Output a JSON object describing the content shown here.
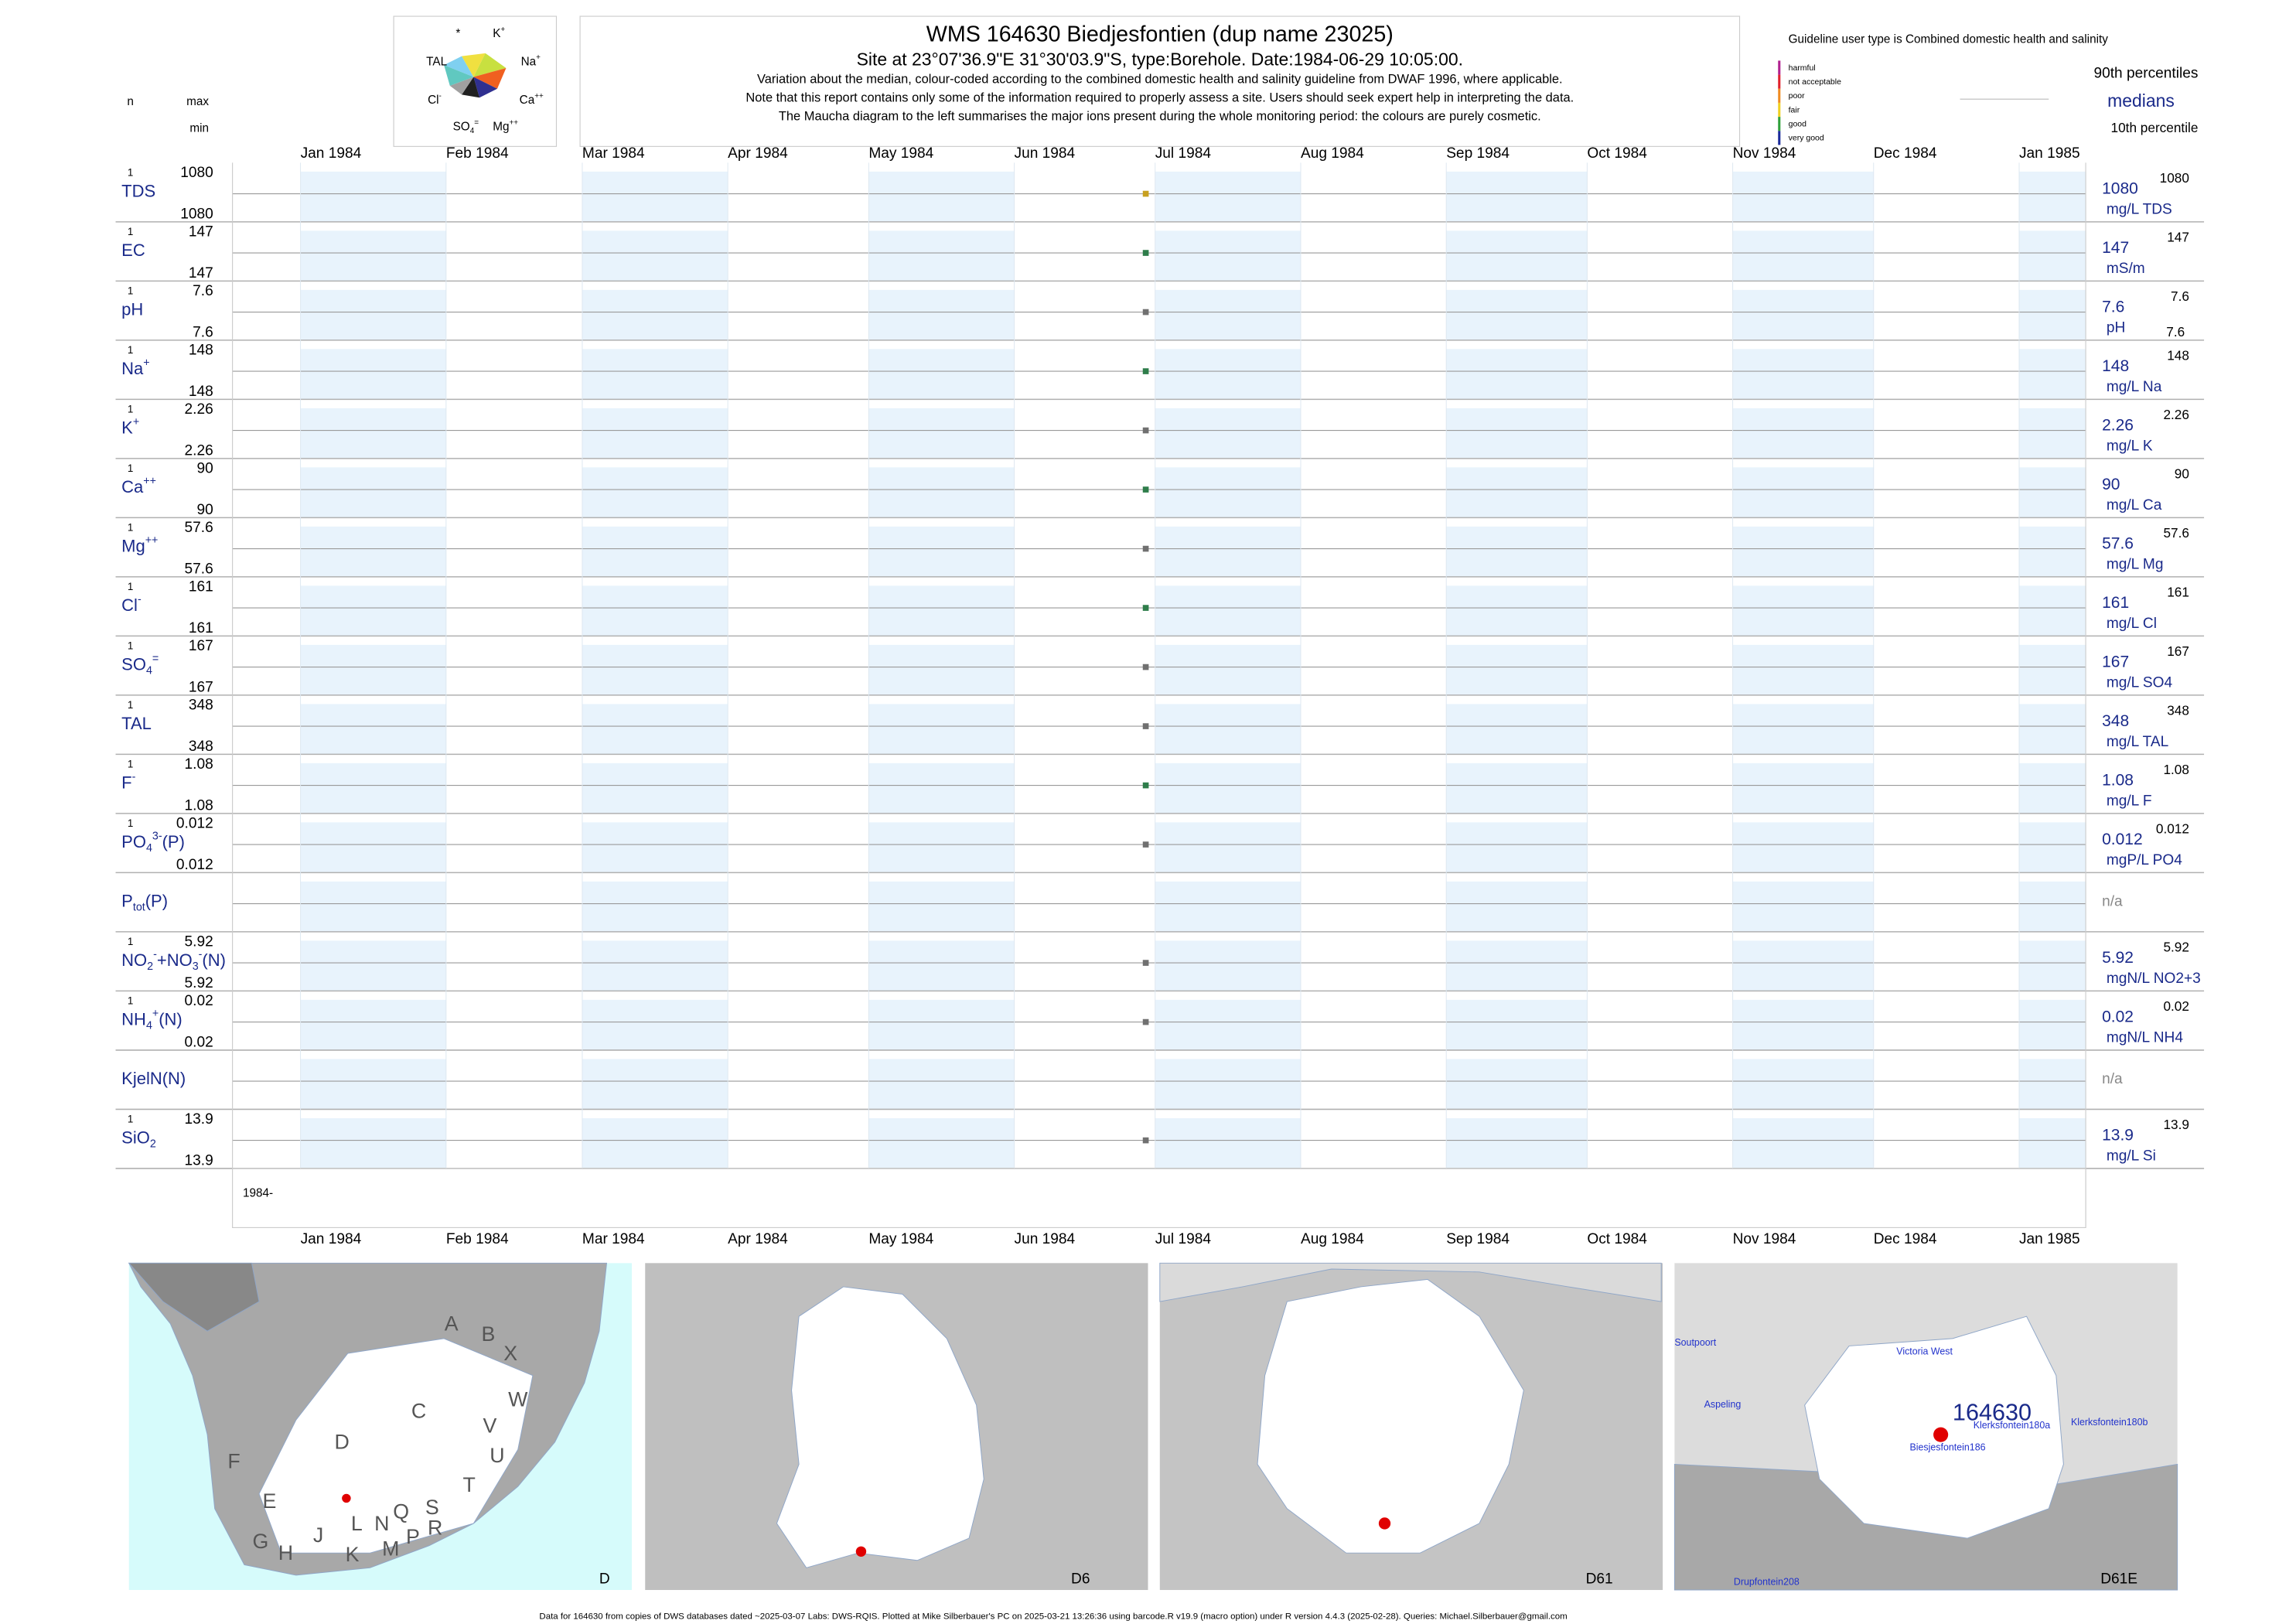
{
  "header": {
    "title": "WMS 164630  Biedjesfontien (dup name 23025)",
    "subtitle": "Site at 23°07'36.9\"E 31°30'03.9\"S, type:Borehole. Date:1984-06-29 10:05:00.",
    "notes": [
      "Variation about the median,  colour-coded according to the combined domestic health and salinity guideline from DWAF 1996, where applicable.",
      "Note that this report contains only some of the information required to properly assess a site. Users should seek expert help in interpreting the data.",
      "The Maucha diagram to the left summarises the major ions present during the whole monitoring period: the colours are purely cosmetic."
    ]
  },
  "maucha": {
    "labels": [
      [
        {
          "t": "*"
        }
      ],
      [
        {
          "t": "K"
        },
        {
          "t": "+",
          "s": "sup"
        }
      ],
      [
        {
          "t": "TAL"
        }
      ],
      [
        {
          "t": "Na"
        },
        {
          "t": "+",
          "s": "sup"
        }
      ],
      [
        {
          "t": "Cl"
        },
        {
          "t": "-",
          "s": "sup"
        }
      ],
      [
        {
          "t": "Ca"
        },
        {
          "t": "++",
          "s": "sup"
        }
      ],
      [
        {
          "t": "SO"
        },
        {
          "t": "4",
          "s": "sub"
        },
        {
          "t": "=",
          "s": "sup"
        }
      ],
      [
        {
          "t": "Mg"
        },
        {
          "t": "++",
          "s": "sup"
        }
      ]
    ]
  },
  "guideline": {
    "title": "Guideline user type is Combined domestic health and salinity",
    "classes": [
      {
        "name": "harmful",
        "color": "#b0208f"
      },
      {
        "name": "not acceptable",
        "color": "#e0202a"
      },
      {
        "name": "poor",
        "color": "#f08a20"
      },
      {
        "name": "fair",
        "color": "#f0d020"
      },
      {
        "name": "good",
        "color": "#2ea03a"
      },
      {
        "name": "very good",
        "color": "#1a2a9a"
      }
    ],
    "p90": "90th percentiles",
    "medians": "medians",
    "p10": "10th percentile"
  },
  "chart_data": {
    "type": "strip",
    "columns": [
      "n",
      "max",
      "min"
    ],
    "categories": [
      "Jan 1984",
      "Feb 1984",
      "Mar 1984",
      "Apr 1984",
      "May 1984",
      "Jun 1984",
      "Jul 1984",
      "Aug 1984",
      "Sep 1984",
      "Oct 1984",
      "Nov 1984",
      "Dec 1984",
      "Jan 1985"
    ],
    "sample_date": "1984-06-29",
    "axis_start": "1984-",
    "rows": [
      {
        "label": [
          {
            "t": "TDS"
          }
        ],
        "n": 1,
        "max": 1080,
        "min": 1080,
        "median": 1080,
        "unit": "mg/L TDS",
        "p90": 1080,
        "color": "#c8a020"
      },
      {
        "label": [
          {
            "t": "EC"
          }
        ],
        "n": 1,
        "max": 147,
        "min": 147,
        "median": 147,
        "unit": "mS/m",
        "p90": 147,
        "color": "#2e7d4a"
      },
      {
        "label": [
          {
            "t": "pH"
          }
        ],
        "n": 1,
        "max": 7.6,
        "min": 7.6,
        "median": 7.6,
        "unit": "pH",
        "p90": 7.6,
        "p10": 7.6,
        "color": "#707070"
      },
      {
        "label": [
          {
            "t": "Na"
          },
          {
            "t": "+",
            "s": "sup"
          }
        ],
        "n": 1,
        "max": 148,
        "min": 148,
        "median": 148,
        "unit": "mg/L Na",
        "p90": 148,
        "color": "#2e7d4a"
      },
      {
        "label": [
          {
            "t": "K"
          },
          {
            "t": "+",
            "s": "sup"
          }
        ],
        "n": 1,
        "max": 2.26,
        "min": 2.26,
        "median": 2.26,
        "unit": "mg/L K",
        "p90": 2.26,
        "color": "#707070"
      },
      {
        "label": [
          {
            "t": "Ca"
          },
          {
            "t": "++",
            "s": "sup"
          }
        ],
        "n": 1,
        "max": 90,
        "min": 90,
        "median": 90,
        "unit": "mg/L Ca",
        "p90": 90,
        "color": "#2e7d4a"
      },
      {
        "label": [
          {
            "t": "Mg"
          },
          {
            "t": "++",
            "s": "sup"
          }
        ],
        "n": 1,
        "max": 57.6,
        "min": 57.6,
        "median": 57.6,
        "unit": "mg/L Mg",
        "p90": 57.6,
        "color": "#707070"
      },
      {
        "label": [
          {
            "t": "Cl"
          },
          {
            "t": "-",
            "s": "sup"
          }
        ],
        "n": 1,
        "max": 161,
        "min": 161,
        "median": 161,
        "unit": "mg/L Cl",
        "p90": 161,
        "color": "#2e7d4a"
      },
      {
        "label": [
          {
            "t": "SO"
          },
          {
            "t": "4",
            "s": "sub"
          },
          {
            "t": "=",
            "s": "sup"
          }
        ],
        "n": 1,
        "max": 167,
        "min": 167,
        "median": 167,
        "unit": "mg/L SO4",
        "p90": 167,
        "color": "#707070"
      },
      {
        "label": [
          {
            "t": "TAL"
          }
        ],
        "n": 1,
        "max": 348,
        "min": 348,
        "median": 348,
        "unit": "mg/L TAL",
        "p90": 348,
        "color": "#707070"
      },
      {
        "label": [
          {
            "t": "F"
          },
          {
            "t": "-",
            "s": "sup"
          }
        ],
        "n": 1,
        "max": 1.08,
        "min": 1.08,
        "median": 1.08,
        "unit": "mg/L F",
        "p90": 1.08,
        "color": "#2e7d4a"
      },
      {
        "label": [
          {
            "t": "PO"
          },
          {
            "t": "4",
            "s": "sub"
          },
          {
            "t": "3-",
            "s": "sup"
          },
          {
            "t": "(P)"
          }
        ],
        "n": 1,
        "max": 0.012,
        "min": 0.012,
        "median": 0.012,
        "unit": "mgP/L PO4",
        "p90": 0.012,
        "color": "#707070"
      },
      {
        "label": [
          {
            "t": "P"
          },
          {
            "t": "tot",
            "s": "sub"
          },
          {
            "t": "(P)"
          }
        ],
        "status": "n/a"
      },
      {
        "label": [
          {
            "t": "NO"
          },
          {
            "t": "2",
            "s": "sub"
          },
          {
            "t": "-",
            "s": "sup"
          },
          {
            "t": "+NO"
          },
          {
            "t": "3",
            "s": "sub"
          },
          {
            "t": "-",
            "s": "sup"
          },
          {
            "t": "(N)"
          }
        ],
        "n": 1,
        "max": 5.92,
        "min": 5.92,
        "median": 5.92,
        "unit": "mgN/L NO2+3",
        "p90": 5.92,
        "color": "#707070"
      },
      {
        "label": [
          {
            "t": "NH"
          },
          {
            "t": "4",
            "s": "sub"
          },
          {
            "t": "+",
            "s": "sup"
          },
          {
            "t": "(N)"
          }
        ],
        "n": 1,
        "max": 0.02,
        "min": 0.02,
        "median": 0.02,
        "unit": "mgN/L NH4",
        "p90": 0.02,
        "color": "#707070"
      },
      {
        "label": [
          {
            "t": "KjelN(N)"
          }
        ],
        "status": "n/a"
      },
      {
        "label": [
          {
            "t": "SiO"
          },
          {
            "t": "2",
            "s": "sub"
          }
        ],
        "n": 1,
        "max": 13.9,
        "min": 13.9,
        "median": 13.9,
        "unit": "mg/L Si",
        "p90": 13.9,
        "color": "#707070"
      }
    ]
  },
  "maps": [
    {
      "label": "D",
      "letters": [
        "A",
        "B",
        "X",
        "W",
        "C",
        "V",
        "U",
        "D",
        "F",
        "T",
        "E",
        "S",
        "Q",
        "N",
        "L",
        "R",
        "P",
        "J",
        "M",
        "K",
        "G",
        "H"
      ]
    },
    {
      "label": "D6"
    },
    {
      "label": "D61"
    },
    {
      "label": "D61E",
      "site": "164630",
      "places": [
        "Soutpoort",
        "Victoria West",
        "Aspeling",
        "Klerksfontein180a",
        "Klerksfontein180b",
        "Biesjesfontein186",
        "Drupfontein208"
      ]
    }
  ],
  "footer": "Data for 164630 from copies of DWS databases dated ~2025-03-07 Labs: DWS-RQIS. Plotted at Mike Silberbauer's PC on 2025-03-21 13:26:36 using barcode.R v19.9 (macro option) under R version 4.4.3 (2025-02-28). Queries: Michael.Silberbauer@gmail.com"
}
